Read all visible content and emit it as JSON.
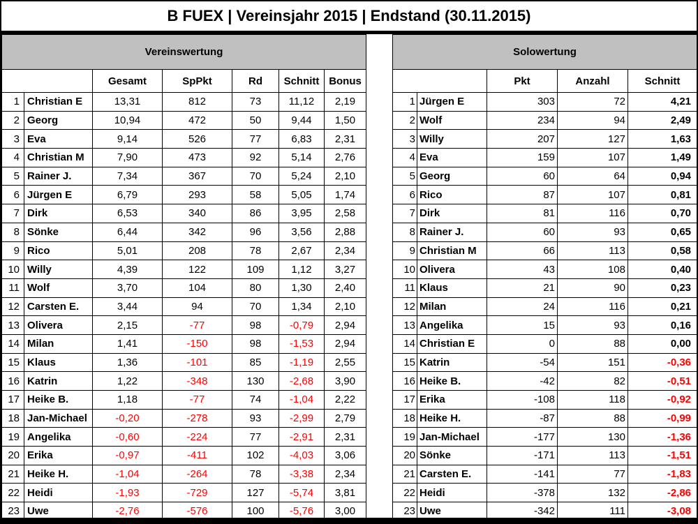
{
  "title": "B FUEX | Vereinsjahr 2015 | Endstand (30.11.2015)",
  "colors": {
    "negative_text": "#FF0000",
    "band_background": "#C0C0C0",
    "border": "#000000"
  },
  "left_table": {
    "band_label": "Vereinswertung",
    "headers": [
      "Gesamt",
      "SpPkt",
      "Rd",
      "Schnitt",
      "Bonus"
    ],
    "column_keys": [
      "gesamt",
      "sppkt",
      "rd",
      "schnitt",
      "bonus"
    ],
    "red_when_negative": [
      "gesamt",
      "sppkt",
      "schnitt"
    ],
    "rows": [
      {
        "rank": "1",
        "name": "Christian E",
        "values": [
          "13,31",
          "812",
          "73",
          "11,12",
          "2,19"
        ]
      },
      {
        "rank": "2",
        "name": "Georg",
        "values": [
          "10,94",
          "472",
          "50",
          "9,44",
          "1,50"
        ]
      },
      {
        "rank": "3",
        "name": "Eva",
        "values": [
          "9,14",
          "526",
          "77",
          "6,83",
          "2,31"
        ]
      },
      {
        "rank": "4",
        "name": "Christian M",
        "values": [
          "7,90",
          "473",
          "92",
          "5,14",
          "2,76"
        ]
      },
      {
        "rank": "5",
        "name": "Rainer J.",
        "values": [
          "7,34",
          "367",
          "70",
          "5,24",
          "2,10"
        ]
      },
      {
        "rank": "6",
        "name": "Jürgen E",
        "values": [
          "6,79",
          "293",
          "58",
          "5,05",
          "1,74"
        ]
      },
      {
        "rank": "7",
        "name": "Dirk",
        "values": [
          "6,53",
          "340",
          "86",
          "3,95",
          "2,58"
        ]
      },
      {
        "rank": "8",
        "name": "Sönke",
        "values": [
          "6,44",
          "342",
          "96",
          "3,56",
          "2,88"
        ]
      },
      {
        "rank": "9",
        "name": "Rico",
        "values": [
          "5,01",
          "208",
          "78",
          "2,67",
          "2,34"
        ]
      },
      {
        "rank": "10",
        "name": "Willy",
        "values": [
          "4,39",
          "122",
          "109",
          "1,12",
          "3,27"
        ]
      },
      {
        "rank": "11",
        "name": "Wolf",
        "values": [
          "3,70",
          "104",
          "80",
          "1,30",
          "2,40"
        ]
      },
      {
        "rank": "12",
        "name": "Carsten E.",
        "values": [
          "3,44",
          "94",
          "70",
          "1,34",
          "2,10"
        ]
      },
      {
        "rank": "13",
        "name": "Olivera",
        "values": [
          "2,15",
          "-77",
          "98",
          "-0,79",
          "2,94"
        ]
      },
      {
        "rank": "14",
        "name": "Milan",
        "values": [
          "1,41",
          "-150",
          "98",
          "-1,53",
          "2,94"
        ]
      },
      {
        "rank": "15",
        "name": "Klaus",
        "values": [
          "1,36",
          "-101",
          "85",
          "-1,19",
          "2,55"
        ]
      },
      {
        "rank": "16",
        "name": "Katrin",
        "values": [
          "1,22",
          "-348",
          "130",
          "-2,68",
          "3,90"
        ]
      },
      {
        "rank": "17",
        "name": "Heike B.",
        "values": [
          "1,18",
          "-77",
          "74",
          "-1,04",
          "2,22"
        ]
      },
      {
        "rank": "18",
        "name": "Jan-Michael",
        "values": [
          "-0,20",
          "-278",
          "93",
          "-2,99",
          "2,79"
        ]
      },
      {
        "rank": "19",
        "name": "Angelika",
        "values": [
          "-0,60",
          "-224",
          "77",
          "-2,91",
          "2,31"
        ]
      },
      {
        "rank": "20",
        "name": "Erika",
        "values": [
          "-0,97",
          "-411",
          "102",
          "-4,03",
          "3,06"
        ]
      },
      {
        "rank": "21",
        "name": "Heike H.",
        "values": [
          "-1,04",
          "-264",
          "78",
          "-3,38",
          "2,34"
        ]
      },
      {
        "rank": "22",
        "name": "Heidi",
        "values": [
          "-1,93",
          "-729",
          "127",
          "-5,74",
          "3,81"
        ]
      },
      {
        "rank": "23",
        "name": "Uwe",
        "values": [
          "-2,76",
          "-576",
          "100",
          "-5,76",
          "3,00"
        ]
      }
    ]
  },
  "right_table": {
    "band_label": "Solowertung",
    "headers": [
      "Pkt",
      "Anzahl",
      "Schnitt"
    ],
    "column_keys": [
      "pkt",
      "anzahl",
      "schnitt"
    ],
    "red_when_negative": [
      "schnitt"
    ],
    "rows": [
      {
        "rank": "1",
        "name": "Jürgen E",
        "values": [
          "303",
          "72",
          "4,21"
        ]
      },
      {
        "rank": "2",
        "name": "Wolf",
        "values": [
          "234",
          "94",
          "2,49"
        ]
      },
      {
        "rank": "3",
        "name": "Willy",
        "values": [
          "207",
          "127",
          "1,63"
        ]
      },
      {
        "rank": "4",
        "name": "Eva",
        "values": [
          "159",
          "107",
          "1,49"
        ]
      },
      {
        "rank": "5",
        "name": "Georg",
        "values": [
          "60",
          "64",
          "0,94"
        ]
      },
      {
        "rank": "6",
        "name": "Rico",
        "values": [
          "87",
          "107",
          "0,81"
        ]
      },
      {
        "rank": "7",
        "name": "Dirk",
        "values": [
          "81",
          "116",
          "0,70"
        ]
      },
      {
        "rank": "8",
        "name": "Rainer J.",
        "values": [
          "60",
          "93",
          "0,65"
        ]
      },
      {
        "rank": "9",
        "name": "Christian M",
        "values": [
          "66",
          "113",
          "0,58"
        ]
      },
      {
        "rank": "10",
        "name": "Olivera",
        "values": [
          "43",
          "108",
          "0,40"
        ]
      },
      {
        "rank": "11",
        "name": "Klaus",
        "values": [
          "21",
          "90",
          "0,23"
        ]
      },
      {
        "rank": "12",
        "name": "Milan",
        "values": [
          "24",
          "116",
          "0,21"
        ]
      },
      {
        "rank": "13",
        "name": "Angelika",
        "values": [
          "15",
          "93",
          "0,16"
        ]
      },
      {
        "rank": "14",
        "name": "Christian E",
        "values": [
          "0",
          "88",
          "0,00"
        ]
      },
      {
        "rank": "15",
        "name": "Katrin",
        "values": [
          "-54",
          "151",
          "-0,36"
        ]
      },
      {
        "rank": "16",
        "name": "Heike B.",
        "values": [
          "-42",
          "82",
          "-0,51"
        ]
      },
      {
        "rank": "17",
        "name": "Erika",
        "values": [
          "-108",
          "118",
          "-0,92"
        ]
      },
      {
        "rank": "18",
        "name": "Heike H.",
        "values": [
          "-87",
          "88",
          "-0,99"
        ]
      },
      {
        "rank": "19",
        "name": "Jan-Michael",
        "values": [
          "-177",
          "130",
          "-1,36"
        ]
      },
      {
        "rank": "20",
        "name": "Sönke",
        "values": [
          "-171",
          "113",
          "-1,51"
        ]
      },
      {
        "rank": "21",
        "name": "Carsten E.",
        "values": [
          "-141",
          "77",
          "-1,83"
        ]
      },
      {
        "rank": "22",
        "name": "Heidi",
        "values": [
          "-378",
          "132",
          "-2,86"
        ]
      },
      {
        "rank": "23",
        "name": "Uwe",
        "values": [
          "-342",
          "111",
          "-3,08"
        ]
      }
    ]
  }
}
